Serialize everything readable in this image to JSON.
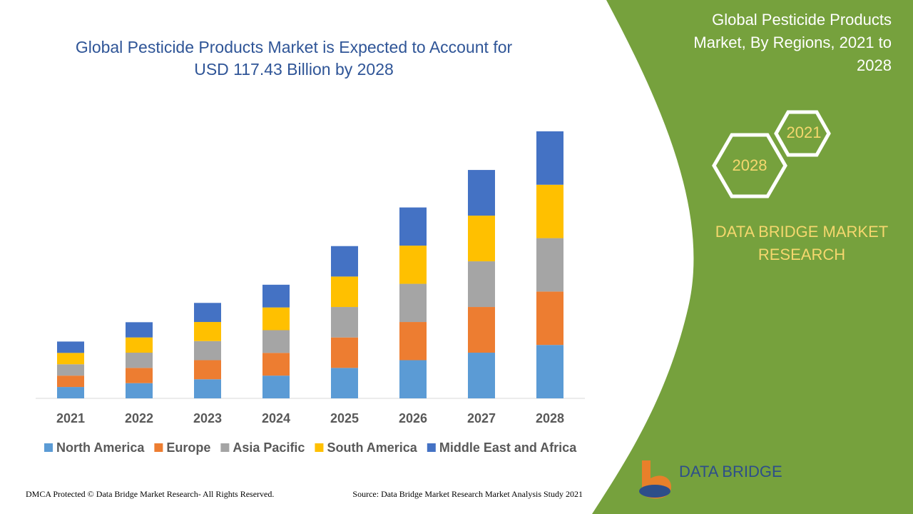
{
  "chart_data": {
    "type": "stacked_bar",
    "title": "Global Pesticide Products Market is Expected to Account for",
    "subtitle": "USD 117.43 Billion by 2028",
    "categories": [
      "2021",
      "2022",
      "2023",
      "2024",
      "2025",
      "2026",
      "2027",
      "2028"
    ],
    "series": [
      {
        "name": "North America",
        "color": "#5b9bd5",
        "values": [
          5.0,
          6.7,
          8.4,
          10.0,
          13.4,
          16.8,
          20.1,
          23.5
        ]
      },
      {
        "name": "Europe",
        "color": "#ed7d31",
        "values": [
          5.0,
          6.7,
          8.4,
          10.0,
          13.4,
          16.8,
          20.1,
          23.5
        ]
      },
      {
        "name": "Asia Pacific",
        "color": "#a5a5a5",
        "values": [
          5.0,
          6.7,
          8.4,
          10.0,
          13.4,
          16.8,
          20.1,
          23.5
        ]
      },
      {
        "name": "South America",
        "color": "#ffc000",
        "values": [
          5.0,
          6.7,
          8.4,
          10.0,
          13.4,
          16.8,
          20.1,
          23.5
        ]
      },
      {
        "name": "Middle East and Africa",
        "color": "#4472c4",
        "values": [
          5.0,
          6.7,
          8.4,
          10.0,
          13.4,
          16.8,
          20.1,
          23.5
        ]
      }
    ],
    "ylim": [
      0,
      120
    ],
    "legend": "bottom"
  },
  "sidebar": {
    "title_lines": [
      "Global Pesticide Products",
      "Market, By Regions, 2021 to",
      "2028"
    ],
    "hex_start": "2021",
    "hex_end": "2028",
    "brand_lines": [
      "DATA BRIDGE MARKET",
      "RESEARCH"
    ],
    "logo": "DATA BRIDGE"
  },
  "footer": {
    "copyright": "DMCA Protected © Data Bridge Market Research- All Rights Reserved.",
    "source": "Source: Data Bridge Market Research Market Analysis Study 2021"
  }
}
